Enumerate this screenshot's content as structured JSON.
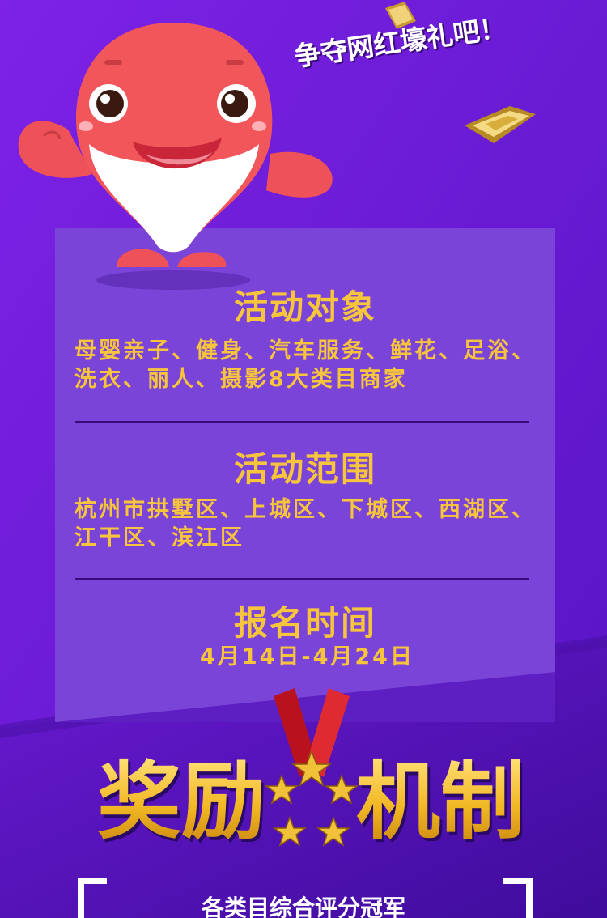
{
  "slogan": "争夺网红壕礼吧！",
  "sections": [
    {
      "title": "活动对象",
      "body": "母婴亲子、健身、汽车服务、鲜花、足浴、洗衣、丽人、摄影8大类目商家"
    },
    {
      "title": "活动范围",
      "body": "杭州市拱墅区、上城区、下城区、西湖区、江干区、滨江区"
    },
    {
      "title": "报名时间",
      "body": "4月14日-4月24日"
    }
  ],
  "reward": {
    "left": "奖励",
    "right": "机制"
  },
  "sub_banner": "各类目综合评分冠军",
  "colors": {
    "background": "#5a18c8",
    "panel": "#7b44d8",
    "gold": "#f7c53b",
    "mascot": "#f0565a",
    "divider": "#3a0a7a"
  },
  "icons": [
    "mascot-illustration",
    "gold-ingot-icon",
    "medal-icon",
    "star-icon"
  ]
}
